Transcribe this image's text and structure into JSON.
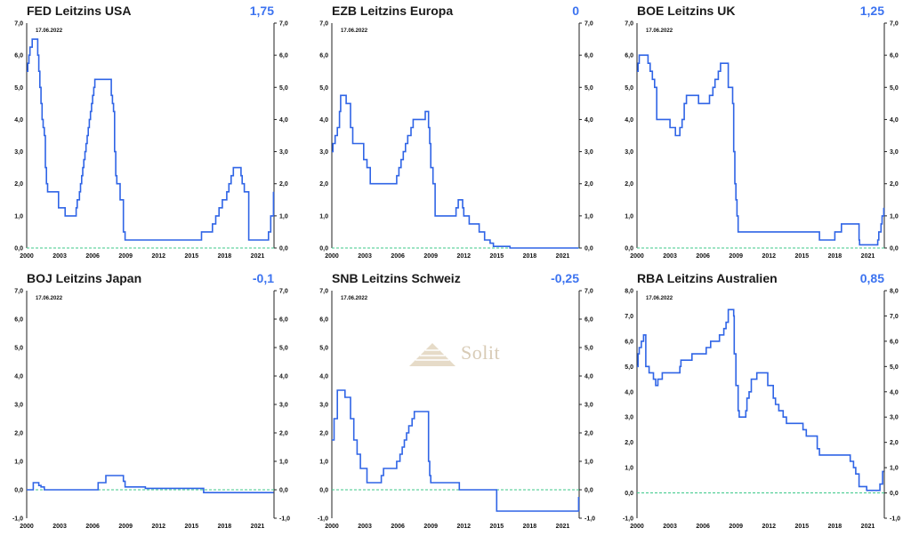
{
  "date_label": "17.06.2022",
  "watermark": "Solit",
  "colors": {
    "line": "#2f64e6",
    "zero": "#3cc98a",
    "title": "#1a1a1a",
    "value": "#3c73f0"
  },
  "chart_data": [
    {
      "type": "line",
      "title": "FED Leitzins USA",
      "current_value": "1,75",
      "xlim": [
        2000,
        2022.5
      ],
      "ylim": [
        0,
        7
      ],
      "yticks": [
        0,
        1,
        2,
        3,
        4,
        5,
        6,
        7
      ],
      "ytick_labels": [
        "0,0",
        "1,0",
        "2,0",
        "3,0",
        "4,0",
        "5,0",
        "6,0",
        "7,0"
      ],
      "xticks": [
        2000,
        2003,
        2006,
        2009,
        2012,
        2015,
        2018,
        2021
      ],
      "x": [
        2000,
        2000.1,
        2000.2,
        2000.3,
        2000.5,
        2001.0,
        2001.1,
        2001.2,
        2001.3,
        2001.4,
        2001.5,
        2001.6,
        2001.7,
        2001.8,
        2001.9,
        2002.0,
        2002.9,
        2003.5,
        2004.5,
        2004.6,
        2004.8,
        2004.9,
        2005.0,
        2005.1,
        2005.2,
        2005.3,
        2005.4,
        2005.5,
        2005.6,
        2005.7,
        2005.8,
        2005.9,
        2006.0,
        2006.1,
        2006.2,
        2006.3,
        2006.5,
        2007.7,
        2007.8,
        2007.9,
        2008.0,
        2008.1,
        2008.2,
        2008.3,
        2008.5,
        2008.8,
        2008.95,
        2015.9,
        2016.9,
        2017.2,
        2017.4,
        2017.5,
        2017.8,
        2018.2,
        2018.4,
        2018.6,
        2018.8,
        2019.5,
        2019.6,
        2019.8,
        2020.2,
        2022.0,
        2022.2,
        2022.45
      ],
      "y": [
        5.5,
        5.75,
        6.0,
        6.25,
        6.5,
        6.0,
        5.5,
        5.0,
        4.5,
        4.0,
        3.75,
        3.5,
        2.5,
        2.0,
        1.75,
        1.75,
        1.25,
        1.0,
        1.25,
        1.5,
        1.75,
        2.0,
        2.25,
        2.5,
        2.75,
        3.0,
        3.25,
        3.5,
        3.75,
        4.0,
        4.25,
        4.5,
        4.75,
        5.0,
        5.25,
        5.25,
        5.25,
        4.75,
        4.5,
        4.25,
        3.0,
        2.25,
        2.0,
        2.0,
        1.5,
        0.5,
        0.25,
        0.5,
        0.75,
        1.0,
        1.0,
        1.25,
        1.5,
        1.75,
        2.0,
        2.25,
        2.5,
        2.25,
        2.0,
        1.75,
        0.25,
        0.5,
        1.0,
        1.75
      ]
    },
    {
      "type": "line",
      "title": "EZB Leitzins Europa",
      "current_value": "0",
      "xlim": [
        2000,
        2022.5
      ],
      "ylim": [
        0,
        7
      ],
      "yticks": [
        0,
        1,
        2,
        3,
        4,
        5,
        6,
        7
      ],
      "ytick_labels": [
        "0,0",
        "1,0",
        "2,0",
        "3,0",
        "4,0",
        "5,0",
        "6,0",
        "7,0"
      ],
      "xticks": [
        2000,
        2003,
        2006,
        2009,
        2012,
        2015,
        2018,
        2021
      ],
      "x": [
        2000,
        2000.1,
        2000.3,
        2000.5,
        2000.7,
        2000.8,
        2001.3,
        2001.7,
        2001.9,
        2002.9,
        2003.2,
        2003.5,
        2005.9,
        2006.1,
        2006.3,
        2006.5,
        2006.7,
        2006.9,
        2007.2,
        2007.4,
        2008.5,
        2008.8,
        2008.9,
        2009.0,
        2009.2,
        2009.4,
        2011.3,
        2011.5,
        2011.9,
        2012.0,
        2012.5,
        2013.4,
        2013.9,
        2014.4,
        2014.7,
        2016.2,
        2022.45
      ],
      "y": [
        3.0,
        3.25,
        3.5,
        3.75,
        4.25,
        4.75,
        4.5,
        3.75,
        3.25,
        2.75,
        2.5,
        2.0,
        2.25,
        2.5,
        2.75,
        3.0,
        3.25,
        3.5,
        3.75,
        4.0,
        4.25,
        3.75,
        3.25,
        2.5,
        2.0,
        1.0,
        1.25,
        1.5,
        1.25,
        1.0,
        0.75,
        0.5,
        0.25,
        0.15,
        0.05,
        0.0,
        0.0
      ]
    },
    {
      "type": "line",
      "title": "BOE Leitzins UK",
      "current_value": "1,25",
      "xlim": [
        2000,
        2022.5
      ],
      "ylim": [
        0,
        7
      ],
      "yticks": [
        0,
        1,
        2,
        3,
        4,
        5,
        6,
        7
      ],
      "ytick_labels": [
        "0,0",
        "1,0",
        "2,0",
        "3,0",
        "4,0",
        "5,0",
        "6,0",
        "7,0"
      ],
      "xticks": [
        2000,
        2003,
        2006,
        2009,
        2012,
        2015,
        2018,
        2021
      ],
      "x": [
        2000,
        2000.1,
        2000.2,
        2001.0,
        2001.2,
        2001.4,
        2001.6,
        2001.8,
        2003.0,
        2003.5,
        2003.9,
        2004.1,
        2004.3,
        2004.5,
        2005.6,
        2006.6,
        2006.9,
        2007.1,
        2007.4,
        2007.6,
        2008.3,
        2008.7,
        2008.8,
        2008.9,
        2009.0,
        2009.1,
        2009.2,
        2016.6,
        2018.0,
        2018.6,
        2020.2,
        2020.25,
        2021.9,
        2022.0,
        2022.2,
        2022.3,
        2022.45
      ],
      "y": [
        5.5,
        5.75,
        6.0,
        5.75,
        5.5,
        5.25,
        5.0,
        4.0,
        3.75,
        3.5,
        3.75,
        4.0,
        4.5,
        4.75,
        4.5,
        4.75,
        5.0,
        5.25,
        5.5,
        5.75,
        5.0,
        4.5,
        3.0,
        2.0,
        1.5,
        1.0,
        0.5,
        0.25,
        0.5,
        0.75,
        0.25,
        0.1,
        0.25,
        0.5,
        0.75,
        1.0,
        1.25
      ]
    },
    {
      "type": "line",
      "title": "BOJ Leitzins Japan",
      "current_value": "-0,1",
      "xlim": [
        2000,
        2022.5
      ],
      "ylim": [
        -1,
        7
      ],
      "yticks": [
        -1,
        0,
        1,
        2,
        3,
        4,
        5,
        6,
        7
      ],
      "ytick_labels": [
        "-1,0",
        "0,0",
        "1,0",
        "2,0",
        "3,0",
        "4,0",
        "5,0",
        "6,0",
        "7,0"
      ],
      "xticks": [
        2000,
        2003,
        2006,
        2009,
        2012,
        2015,
        2018,
        2021
      ],
      "x": [
        2000,
        2000.6,
        2001.1,
        2001.3,
        2001.6,
        2006.5,
        2007.2,
        2008.8,
        2008.95,
        2010.8,
        2016.1,
        2022.45
      ],
      "y": [
        0.0,
        0.25,
        0.15,
        0.1,
        0.0,
        0.25,
        0.5,
        0.3,
        0.1,
        0.05,
        -0.1,
        -0.1
      ]
    },
    {
      "type": "line",
      "title": "SNB Leitzins Schweiz",
      "current_value": "-0,25",
      "xlim": [
        2000,
        2022.5
      ],
      "ylim": [
        -1,
        7
      ],
      "yticks": [
        -1,
        0,
        1,
        2,
        3,
        4,
        5,
        6,
        7
      ],
      "ytick_labels": [
        "-1,0",
        "0,0",
        "1,0",
        "2,0",
        "3,0",
        "4,0",
        "5,0",
        "6,0",
        "7,0"
      ],
      "xticks": [
        2000,
        2003,
        2006,
        2009,
        2012,
        2015,
        2018,
        2021
      ],
      "x": [
        2000,
        2000.2,
        2000.5,
        2001.2,
        2001.7,
        2002.0,
        2002.3,
        2002.6,
        2003.2,
        2004.5,
        2004.7,
        2005.9,
        2006.2,
        2006.4,
        2006.6,
        2006.8,
        2007.0,
        2007.3,
        2007.5,
        2008.8,
        2008.9,
        2009.0,
        2011.6,
        2015.0,
        2022.3,
        2022.45
      ],
      "y": [
        1.75,
        2.5,
        3.5,
        3.25,
        2.5,
        1.75,
        1.25,
        0.75,
        0.25,
        0.5,
        0.75,
        1.0,
        1.25,
        1.5,
        1.75,
        2.0,
        2.25,
        2.5,
        2.75,
        1.0,
        0.5,
        0.25,
        0.0,
        -0.75,
        -0.75,
        -0.25
      ]
    },
    {
      "type": "line",
      "title": "RBA Leitzins Australien",
      "current_value": "0,85",
      "xlim": [
        2000,
        2022.5
      ],
      "ylim": [
        -1,
        8
      ],
      "yticks": [
        -1,
        0,
        1,
        2,
        3,
        4,
        5,
        6,
        7,
        8
      ],
      "ytick_labels": [
        "-1,0",
        "0,0",
        "1,0",
        "2,0",
        "3,0",
        "4,0",
        "5,0",
        "6,0",
        "7,0",
        "8,0"
      ],
      "xticks": [
        2000,
        2003,
        2006,
        2009,
        2012,
        2015,
        2018,
        2021
      ],
      "x": [
        2000,
        2000.1,
        2000.2,
        2000.4,
        2000.6,
        2000.8,
        2001.1,
        2001.5,
        2001.7,
        2001.9,
        2002.3,
        2003.9,
        2004.0,
        2005.0,
        2006.3,
        2006.7,
        2007.5,
        2007.9,
        2008.1,
        2008.3,
        2008.8,
        2008.85,
        2009.0,
        2009.2,
        2009.3,
        2009.9,
        2010.0,
        2010.2,
        2010.4,
        2010.9,
        2011.9,
        2012.4,
        2012.6,
        2012.9,
        2013.3,
        2013.6,
        2015.1,
        2015.4,
        2016.4,
        2016.6,
        2019.4,
        2019.7,
        2019.9,
        2020.2,
        2020.9,
        2022.1,
        2022.35,
        2022.45
      ],
      "y": [
        5.0,
        5.5,
        5.75,
        6.0,
        6.25,
        5.0,
        4.75,
        4.5,
        4.25,
        4.5,
        4.75,
        5.0,
        5.25,
        5.5,
        5.75,
        6.0,
        6.25,
        6.5,
        6.75,
        7.25,
        7.0,
        5.5,
        4.25,
        3.25,
        3.0,
        3.25,
        3.75,
        4.0,
        4.5,
        4.75,
        4.25,
        3.75,
        3.5,
        3.25,
        3.0,
        2.75,
        2.5,
        2.25,
        1.75,
        1.5,
        1.25,
        1.0,
        0.75,
        0.25,
        0.1,
        0.35,
        0.85,
        0.85
      ]
    }
  ]
}
